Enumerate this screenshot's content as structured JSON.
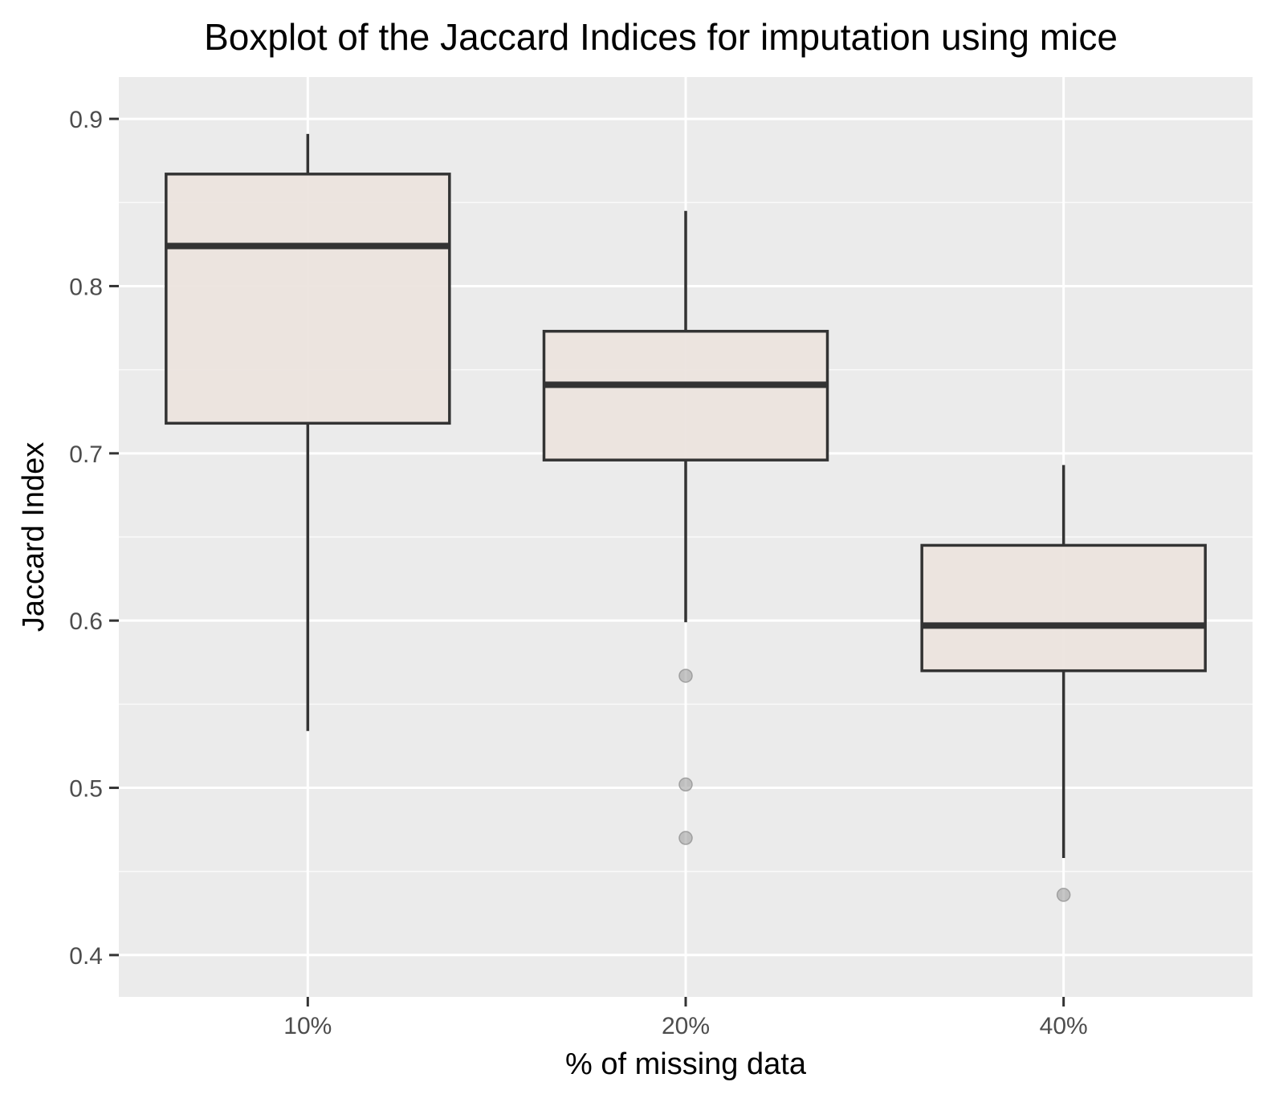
{
  "chart_data": {
    "type": "boxplot",
    "title": "Boxplot of the Jaccard Indices for imputation using mice",
    "xlabel": "% of missing data",
    "ylabel": "Jaccard Index",
    "ylim": [
      0.375,
      0.925
    ],
    "yticks": [
      0.4,
      0.5,
      0.6,
      0.7,
      0.8,
      0.9
    ],
    "ytick_labels": [
      "0.4",
      "0.5",
      "0.6",
      "0.7",
      "0.8",
      "0.9"
    ],
    "grid": true,
    "categories": [
      "10%",
      "20%",
      "40%"
    ],
    "boxes": [
      {
        "category": "10%",
        "whisker_low": 0.534,
        "q1": 0.718,
        "median": 0.824,
        "q3": 0.867,
        "whisker_high": 0.891,
        "outliers": []
      },
      {
        "category": "20%",
        "whisker_low": 0.599,
        "q1": 0.696,
        "median": 0.741,
        "q3": 0.773,
        "whisker_high": 0.845,
        "outliers": [
          0.567,
          0.502,
          0.47
        ]
      },
      {
        "category": "40%",
        "whisker_low": 0.458,
        "q1": 0.57,
        "median": 0.597,
        "q3": 0.645,
        "whisker_high": 0.693,
        "outliers": [
          0.436
        ]
      }
    ],
    "colors": {
      "panel_background": "#ebebeb",
      "grid_major": "#ffffff",
      "box_fill": "#ece3dd",
      "box_outline": "#333333",
      "outlier": "#999999",
      "tick_text": "#4d4d4d"
    }
  }
}
